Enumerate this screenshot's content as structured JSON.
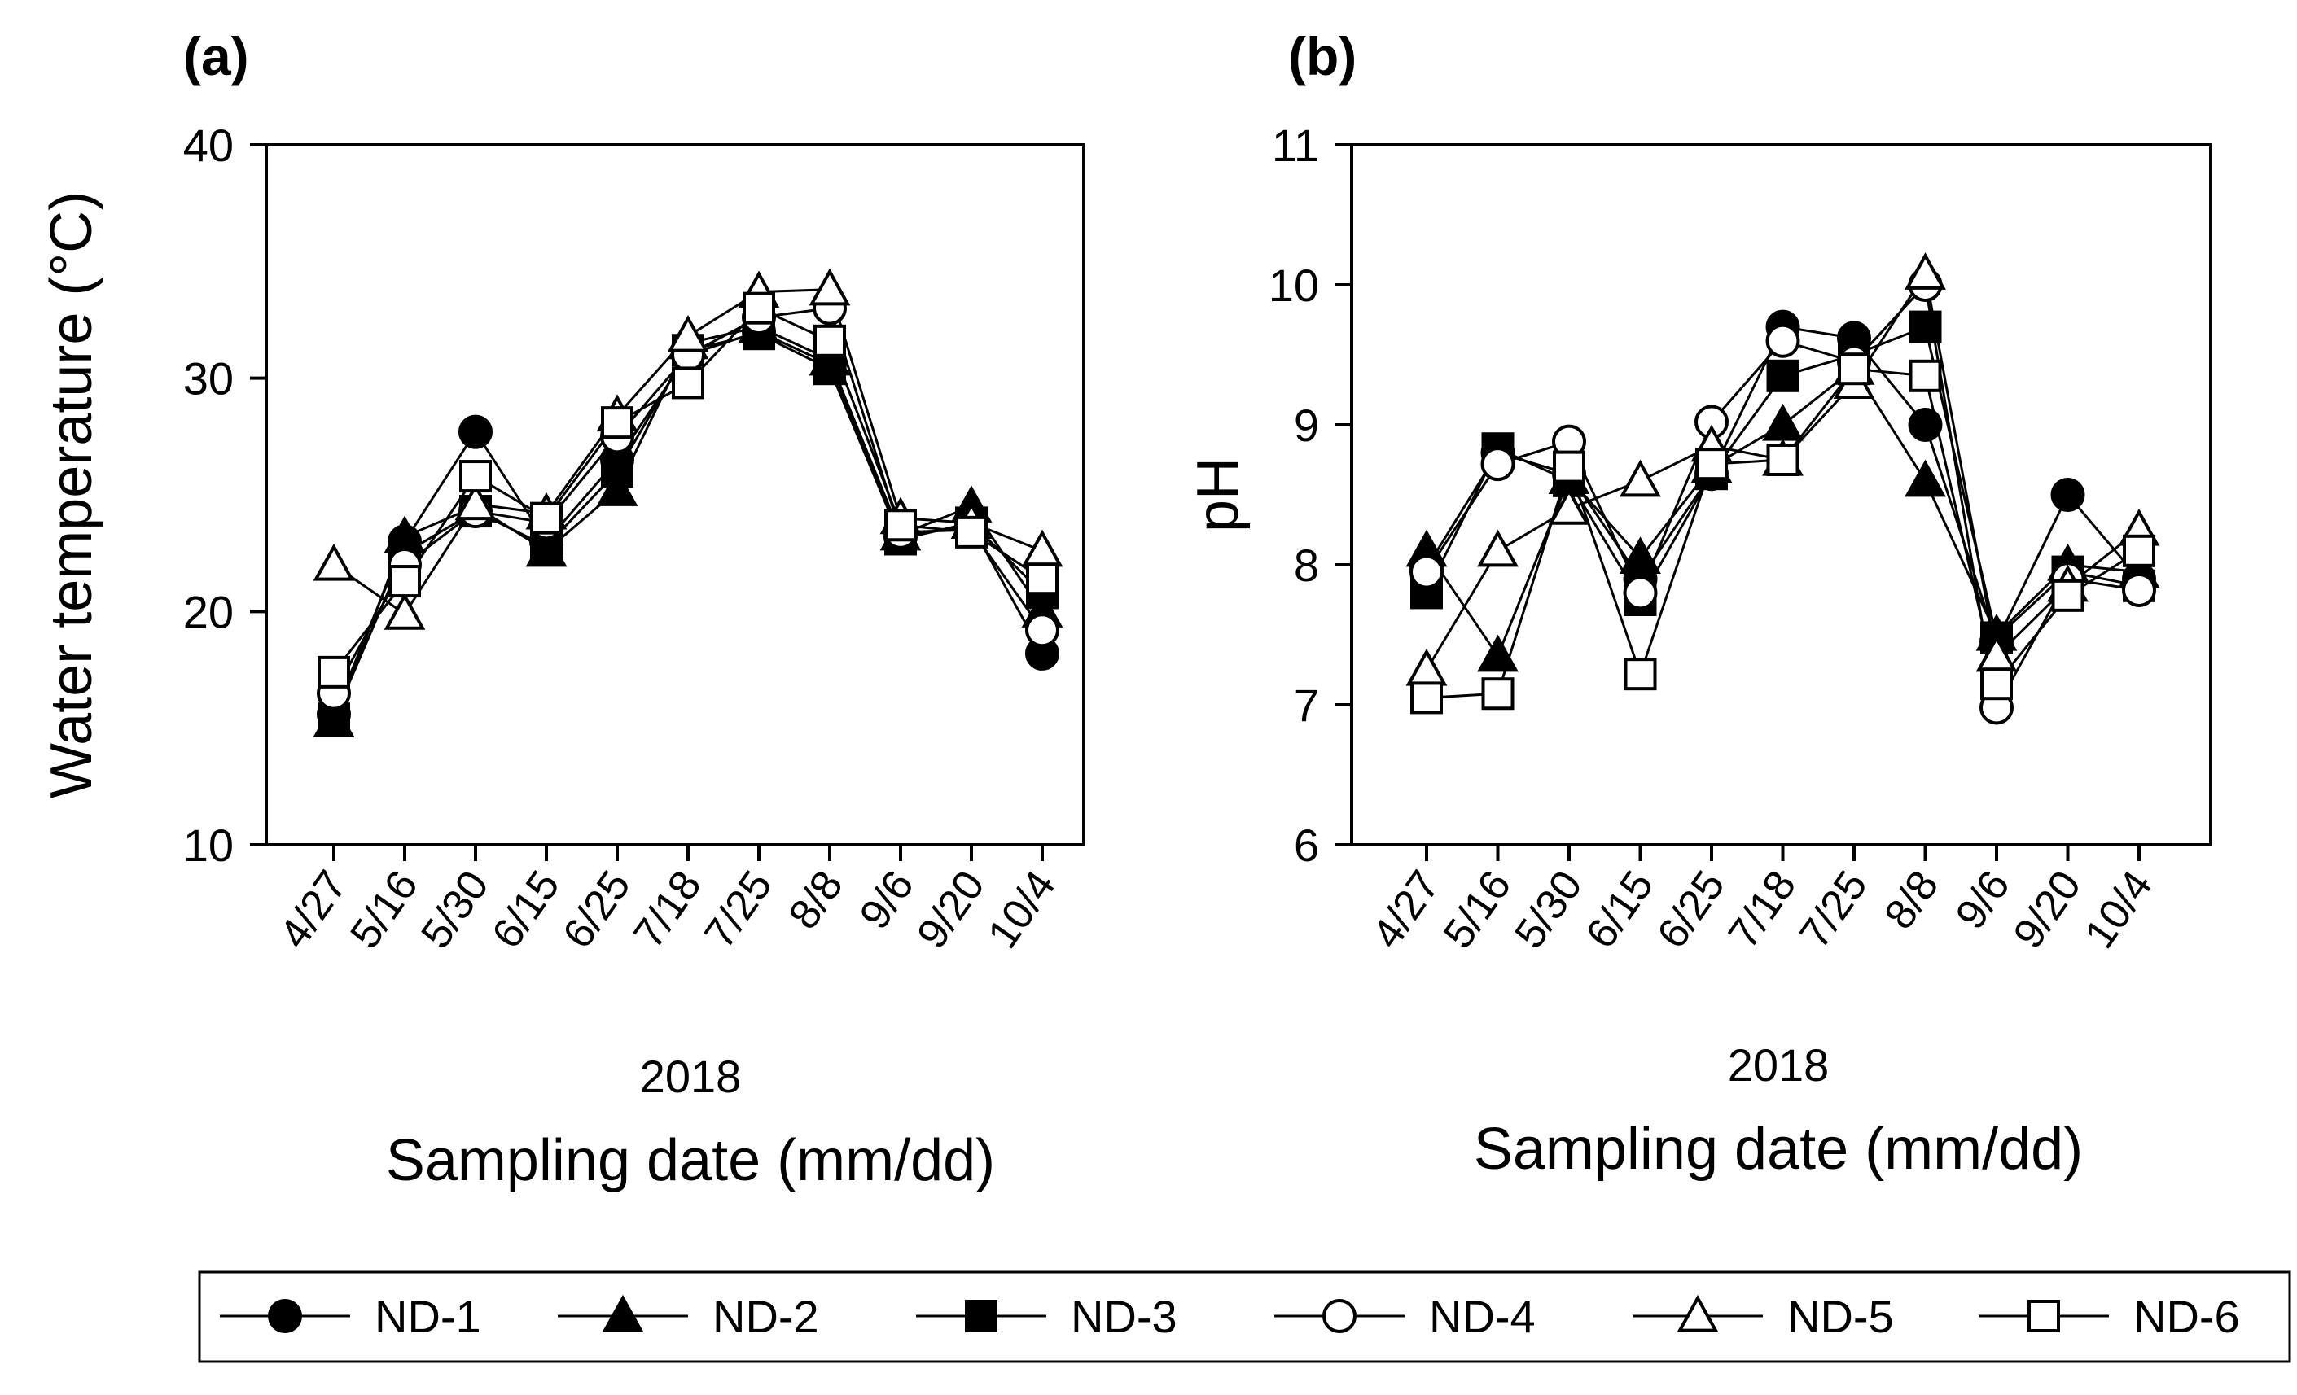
{
  "chart_data": [
    {
      "id": "a",
      "type": "line",
      "panel_label": "(a)",
      "title": "",
      "xlabel": "Sampling date (mm/dd)",
      "xlabel_year": "2018",
      "ylabel": "Water temperature (°C)",
      "ylim": [
        10,
        40
      ],
      "yticks": [
        10,
        20,
        30,
        40
      ],
      "categories": [
        "4/27",
        "5/16",
        "5/30",
        "6/15",
        "6/25",
        "7/18",
        "7/25",
        "8/8",
        "9/6",
        "9/20",
        "10/4"
      ],
      "series": [
        {
          "name": "ND-1",
          "marker": "circle",
          "filled": true,
          "values": [
            15.6,
            23.0,
            27.7,
            23.0,
            26.5,
            31.0,
            32.0,
            30.6,
            23.2,
            23.7,
            18.2
          ]
        },
        {
          "name": "ND-2",
          "marker": "triangle",
          "filled": true,
          "values": [
            15.3,
            23.2,
            24.5,
            22.6,
            25.2,
            31.5,
            32.2,
            30.8,
            23.3,
            24.5,
            20.0
          ]
        },
        {
          "name": "ND-3",
          "marker": "square",
          "filled": true,
          "values": [
            15.4,
            22.5,
            24.3,
            22.8,
            26.0,
            31.2,
            31.9,
            30.4,
            23.1,
            23.8,
            20.8
          ]
        },
        {
          "name": "ND-4",
          "marker": "circle",
          "filled": false,
          "values": [
            16.5,
            22.0,
            24.3,
            23.8,
            27.5,
            31.0,
            32.6,
            33.0,
            23.4,
            23.5,
            19.2
          ]
        },
        {
          "name": "ND-5",
          "marker": "triangle",
          "filled": false,
          "values": [
            22.0,
            19.9,
            24.6,
            24.2,
            28.4,
            31.8,
            33.7,
            33.8,
            24.0,
            23.8,
            22.6
          ]
        },
        {
          "name": "ND-6",
          "marker": "square",
          "filled": false,
          "values": [
            17.4,
            21.3,
            25.8,
            24.0,
            28.1,
            29.8,
            33.0,
            31.6,
            23.7,
            23.4,
            21.4
          ]
        }
      ]
    },
    {
      "id": "b",
      "type": "line",
      "panel_label": "(b)",
      "title": "",
      "xlabel": "Sampling date (mm/dd)",
      "xlabel_year": "2018",
      "ylabel": "pH",
      "ylim": [
        6,
        11
      ],
      "yticks": [
        6,
        7,
        8,
        9,
        10,
        11
      ],
      "categories": [
        "4/27",
        "5/16",
        "5/30",
        "6/15",
        "6/25",
        "7/18",
        "7/25",
        "8/8",
        "9/6",
        "9/20",
        "10/4"
      ],
      "series": [
        {
          "name": "ND-1",
          "marker": "circle",
          "filled": true,
          "values": [
            7.98,
            8.8,
            8.65,
            7.9,
            8.65,
            9.7,
            9.62,
            9.0,
            7.45,
            8.5,
            7.9
          ]
        },
        {
          "name": "ND-2",
          "marker": "triangle",
          "filled": true,
          "values": [
            8.1,
            7.35,
            8.62,
            8.05,
            8.7,
            9.0,
            9.4,
            8.6,
            7.5,
            8.0,
            7.95
          ]
        },
        {
          "name": "ND-3",
          "marker": "square",
          "filled": true,
          "values": [
            7.8,
            8.83,
            8.6,
            7.75,
            8.65,
            9.35,
            9.5,
            9.7,
            7.48,
            7.95,
            7.85
          ]
        },
        {
          "name": "ND-4",
          "marker": "circle",
          "filled": false,
          "values": [
            7.95,
            8.72,
            8.88,
            7.8,
            9.02,
            9.6,
            9.45,
            10.0,
            6.98,
            7.9,
            7.82
          ]
        },
        {
          "name": "ND-5",
          "marker": "triangle",
          "filled": false,
          "values": [
            7.25,
            8.1,
            8.4,
            8.6,
            8.85,
            8.75,
            9.3,
            10.08,
            7.35,
            7.85,
            8.25
          ]
        },
        {
          "name": "ND-6",
          "marker": "square",
          "filled": false,
          "values": [
            7.05,
            7.08,
            8.7,
            7.22,
            8.72,
            8.75,
            9.4,
            9.35,
            7.15,
            7.78,
            8.1
          ]
        }
      ]
    }
  ],
  "legend": {
    "placement": "bottom",
    "entries": [
      {
        "label": "ND-1",
        "marker": "circle",
        "filled": true
      },
      {
        "label": "ND-2",
        "marker": "triangle",
        "filled": true
      },
      {
        "label": "ND-3",
        "marker": "square",
        "filled": true
      },
      {
        "label": "ND-4",
        "marker": "circle",
        "filled": false
      },
      {
        "label": "ND-5",
        "marker": "triangle",
        "filled": false
      },
      {
        "label": "ND-6",
        "marker": "square",
        "filled": false
      }
    ]
  }
}
